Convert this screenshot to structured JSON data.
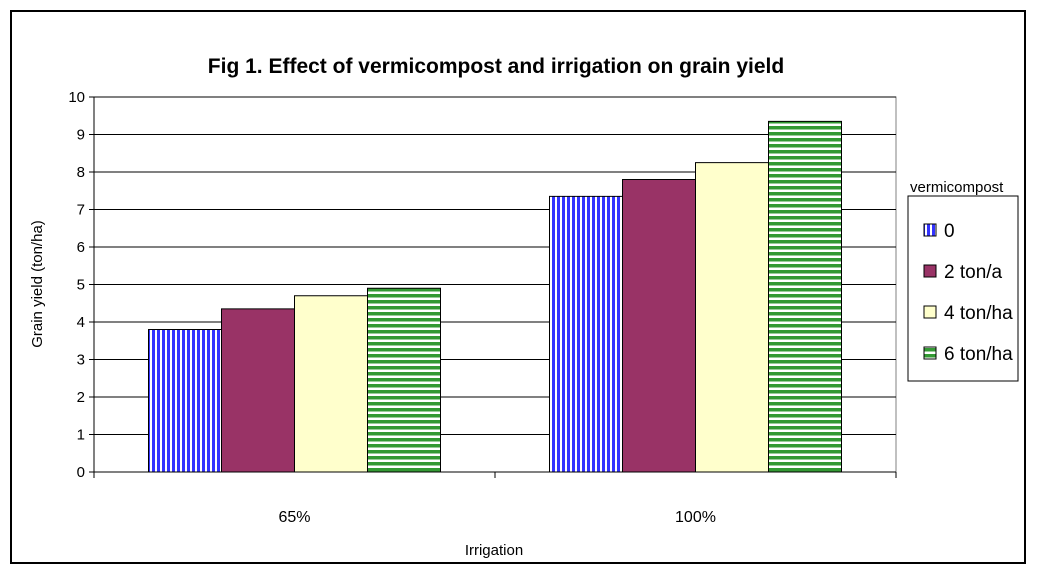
{
  "chart_data": {
    "type": "bar",
    "title": "Fig 1. Effect of vermicompost and irrigation on grain yield",
    "xlabel": "Irrigation",
    "ylabel": "Grain yield (ton/ha)",
    "ylim": [
      0,
      10
    ],
    "yticks": [
      0,
      1,
      2,
      3,
      4,
      5,
      6,
      7,
      8,
      9,
      10
    ],
    "categories": [
      "65%",
      "100%"
    ],
    "series": [
      {
        "name": "0",
        "values": [
          3.8,
          7.35
        ],
        "color": "#3333ff",
        "pattern": "vertical-stripes"
      },
      {
        "name": "2 ton/a",
        "values": [
          4.35,
          7.8
        ],
        "color": "#993366",
        "pattern": "solid"
      },
      {
        "name": "4 ton/ha",
        "values": [
          4.7,
          8.25
        ],
        "color": "#ffffcc",
        "pattern": "solid"
      },
      {
        "name": "6 ton/ha",
        "values": [
          4.9,
          9.35
        ],
        "color": "#339933",
        "pattern": "horizontal-stripes"
      }
    ],
    "legend": {
      "title": "vermicompost",
      "position": "right"
    },
    "grid": true
  }
}
